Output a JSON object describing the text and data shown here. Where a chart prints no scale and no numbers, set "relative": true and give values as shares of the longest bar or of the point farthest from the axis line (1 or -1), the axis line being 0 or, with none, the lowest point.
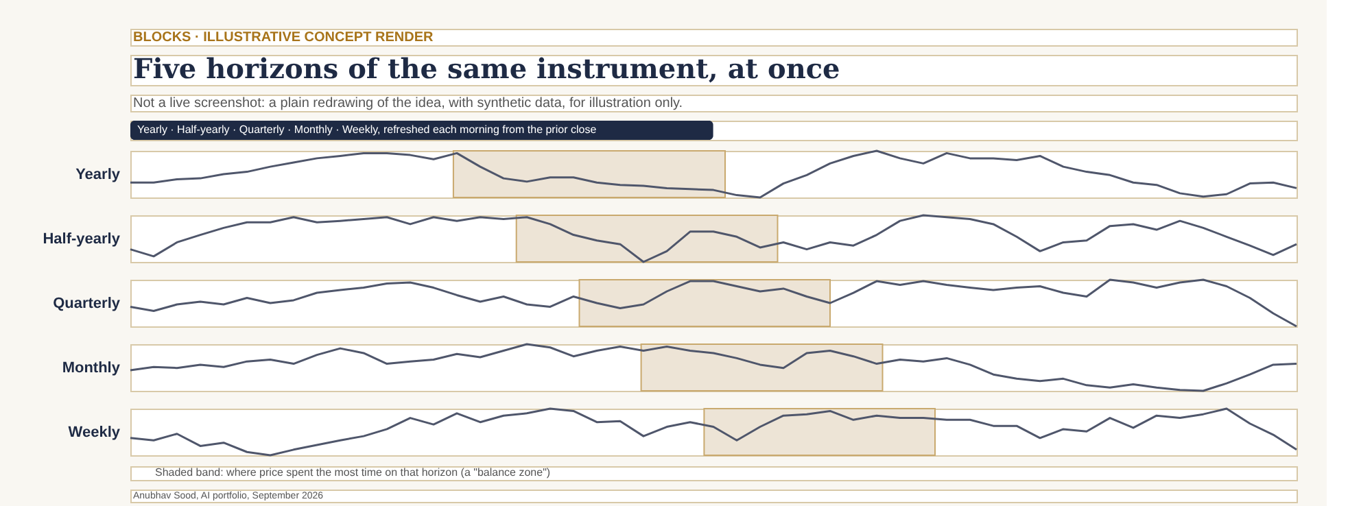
{
  "chart_data": [
    {
      "type": "line",
      "title": "Five horizons of the same instrument, at once",
      "subtitle": "Not a live screenshot: a plain redrawing of the idea, with synthetic data, for illustration only.",
      "annotations": [
        "BLOCKS · ILLUSTRATIVE CONCEPT RENDER",
        "Yearly · Half-yearly · Quarterly · Monthly · Weekly, refreshed each morning from the prior close"
      ],
      "ylabel": "Yearly",
      "relative": true,
      "categories": [
        null,
        null,
        null,
        null,
        null,
        null,
        null,
        null,
        null,
        null,
        null,
        null,
        null,
        null,
        null,
        null,
        null,
        null,
        null,
        null,
        null,
        null,
        null,
        null,
        null,
        null,
        null,
        null,
        null,
        null,
        null,
        null,
        null,
        null,
        null,
        null,
        null,
        null,
        null,
        null,
        null,
        null,
        null,
        null,
        null,
        null,
        null,
        null,
        null,
        null,
        null
      ],
      "tick_labels": false,
      "series": [
        {
          "color": "#4f566b",
          "values": [
            0.32,
            0.32,
            0.39,
            0.41,
            0.5,
            0.55,
            0.66,
            0.75,
            0.84,
            0.89,
            0.95,
            0.95,
            0.91,
            0.82,
            0.95,
            0.66,
            0.41,
            0.34,
            0.43,
            0.43,
            0.32,
            0.27,
            0.25,
            0.2,
            0.18,
            0.16,
            0.05,
            0,
            0.3,
            0.48,
            0.73,
            0.89,
            1,
            0.84,
            0.73,
            0.95,
            0.84,
            0.84,
            0.8,
            0.89,
            0.66,
            0.55,
            0.48,
            0.32,
            0.27,
            0.09,
            0.02,
            0.07,
            0.3,
            0.32,
            0.2
          ]
        }
      ]
    },
    {
      "type": "line",
      "ylabel": "Half-yearly",
      "relative": true,
      "categories": [
        null,
        null,
        null,
        null,
        null,
        null,
        null,
        null,
        null,
        null,
        null,
        null,
        null,
        null,
        null,
        null,
        null,
        null,
        null,
        null,
        null,
        null,
        null,
        null,
        null,
        null,
        null,
        null,
        null,
        null,
        null,
        null,
        null,
        null,
        null,
        null,
        null,
        null,
        null,
        null,
        null,
        null,
        null,
        null,
        null,
        null,
        null,
        null,
        null,
        null,
        null
      ],
      "tick_labels": false,
      "series": [
        {
          "color": "#4f566b",
          "values": [
            0.27,
            0.12,
            0.42,
            0.58,
            0.73,
            0.85,
            0.85,
            0.96,
            0.85,
            0.88,
            0.92,
            0.96,
            0.81,
            0.96,
            0.88,
            0.96,
            0.92,
            0.96,
            0.81,
            0.58,
            0.46,
            0.38,
            0,
            0.23,
            0.65,
            0.65,
            0.54,
            0.31,
            0.42,
            0.27,
            0.42,
            0.35,
            0.58,
            0.88,
            1,
            0.96,
            0.92,
            0.81,
            0.54,
            0.23,
            0.42,
            0.46,
            0.77,
            0.81,
            0.69,
            0.88,
            0.73,
            0.54,
            0.35,
            0.15,
            0.38
          ]
        }
      ]
    },
    {
      "type": "line",
      "ylabel": "Quarterly",
      "relative": true,
      "categories": [
        null,
        null,
        null,
        null,
        null,
        null,
        null,
        null,
        null,
        null,
        null,
        null,
        null,
        null,
        null,
        null,
        null,
        null,
        null,
        null,
        null,
        null,
        null,
        null,
        null,
        null,
        null,
        null,
        null,
        null,
        null,
        null,
        null,
        null,
        null,
        null,
        null,
        null,
        null,
        null,
        null,
        null,
        null,
        null,
        null,
        null,
        null,
        null,
        null,
        null,
        null
      ],
      "tick_labels": false,
      "series": [
        {
          "color": "#4f566b",
          "values": [
            0.42,
            0.33,
            0.47,
            0.53,
            0.47,
            0.61,
            0.5,
            0.56,
            0.72,
            0.78,
            0.83,
            0.92,
            0.94,
            0.83,
            0.67,
            0.53,
            0.64,
            0.47,
            0.42,
            0.64,
            0.5,
            0.39,
            0.47,
            0.75,
            0.97,
            0.97,
            0.86,
            0.75,
            0.81,
            0.64,
            0.5,
            0.72,
            0.97,
            0.89,
            0.97,
            0.89,
            0.83,
            0.78,
            0.83,
            0.86,
            0.72,
            0.64,
            1,
            0.94,
            0.83,
            0.94,
            1,
            0.86,
            0.61,
            0.28,
            0
          ]
        }
      ]
    },
    {
      "type": "line",
      "ylabel": "Monthly",
      "relative": true,
      "categories": [
        null,
        null,
        null,
        null,
        null,
        null,
        null,
        null,
        null,
        null,
        null,
        null,
        null,
        null,
        null,
        null,
        null,
        null,
        null,
        null,
        null,
        null,
        null,
        null,
        null,
        null,
        null,
        null,
        null,
        null,
        null,
        null,
        null,
        null,
        null,
        null,
        null,
        null,
        null,
        null,
        null,
        null,
        null,
        null,
        null,
        null,
        null,
        null,
        null,
        null,
        null
      ],
      "tick_labels": false,
      "series": [
        {
          "color": "#4f566b",
          "values": [
            0.44,
            0.51,
            0.49,
            0.56,
            0.51,
            0.63,
            0.67,
            0.58,
            0.77,
            0.91,
            0.81,
            0.58,
            0.63,
            0.67,
            0.79,
            0.72,
            0.86,
            1,
            0.93,
            0.74,
            0.86,
            0.95,
            0.86,
            0.95,
            0.86,
            0.81,
            0.7,
            0.56,
            0.49,
            0.81,
            0.86,
            0.74,
            0.58,
            0.67,
            0.63,
            0.7,
            0.56,
            0.35,
            0.26,
            0.21,
            0.26,
            0.12,
            0.07,
            0.14,
            0.07,
            0.02,
            0,
            0.16,
            0.35,
            0.56,
            0.58
          ]
        }
      ]
    },
    {
      "type": "line",
      "ylabel": "Weekly",
      "relative": true,
      "categories": [
        null,
        null,
        null,
        null,
        null,
        null,
        null,
        null,
        null,
        null,
        null,
        null,
        null,
        null,
        null,
        null,
        null,
        null,
        null,
        null,
        null,
        null,
        null,
        null,
        null,
        null,
        null,
        null,
        null,
        null,
        null,
        null,
        null,
        null,
        null,
        null,
        null,
        null,
        null,
        null,
        null,
        null,
        null,
        null,
        null,
        null,
        null,
        null,
        null,
        null,
        null
      ],
      "tick_labels": false,
      "annotations": [
        "Shaded band: where price spent the most time on that horizon (a \"balance zone\")",
        "Anubhav Sood, AI portfolio, September 2026"
      ],
      "series": [
        {
          "color": "#4f566b",
          "values": [
            0.37,
            0.32,
            0.46,
            0.2,
            0.27,
            0.07,
            0,
            0.12,
            0.22,
            0.32,
            0.41,
            0.56,
            0.8,
            0.66,
            0.9,
            0.71,
            0.85,
            0.9,
            1,
            0.95,
            0.71,
            0.73,
            0.41,
            0.61,
            0.71,
            0.61,
            0.32,
            0.61,
            0.85,
            0.88,
            0.95,
            0.76,
            0.85,
            0.8,
            0.8,
            0.76,
            0.76,
            0.63,
            0.63,
            0.37,
            0.56,
            0.51,
            0.8,
            0.59,
            0.85,
            0.8,
            0.88,
            1,
            0.68,
            0.44,
            0.12
          ]
        }
      ]
    }
  ]
}
